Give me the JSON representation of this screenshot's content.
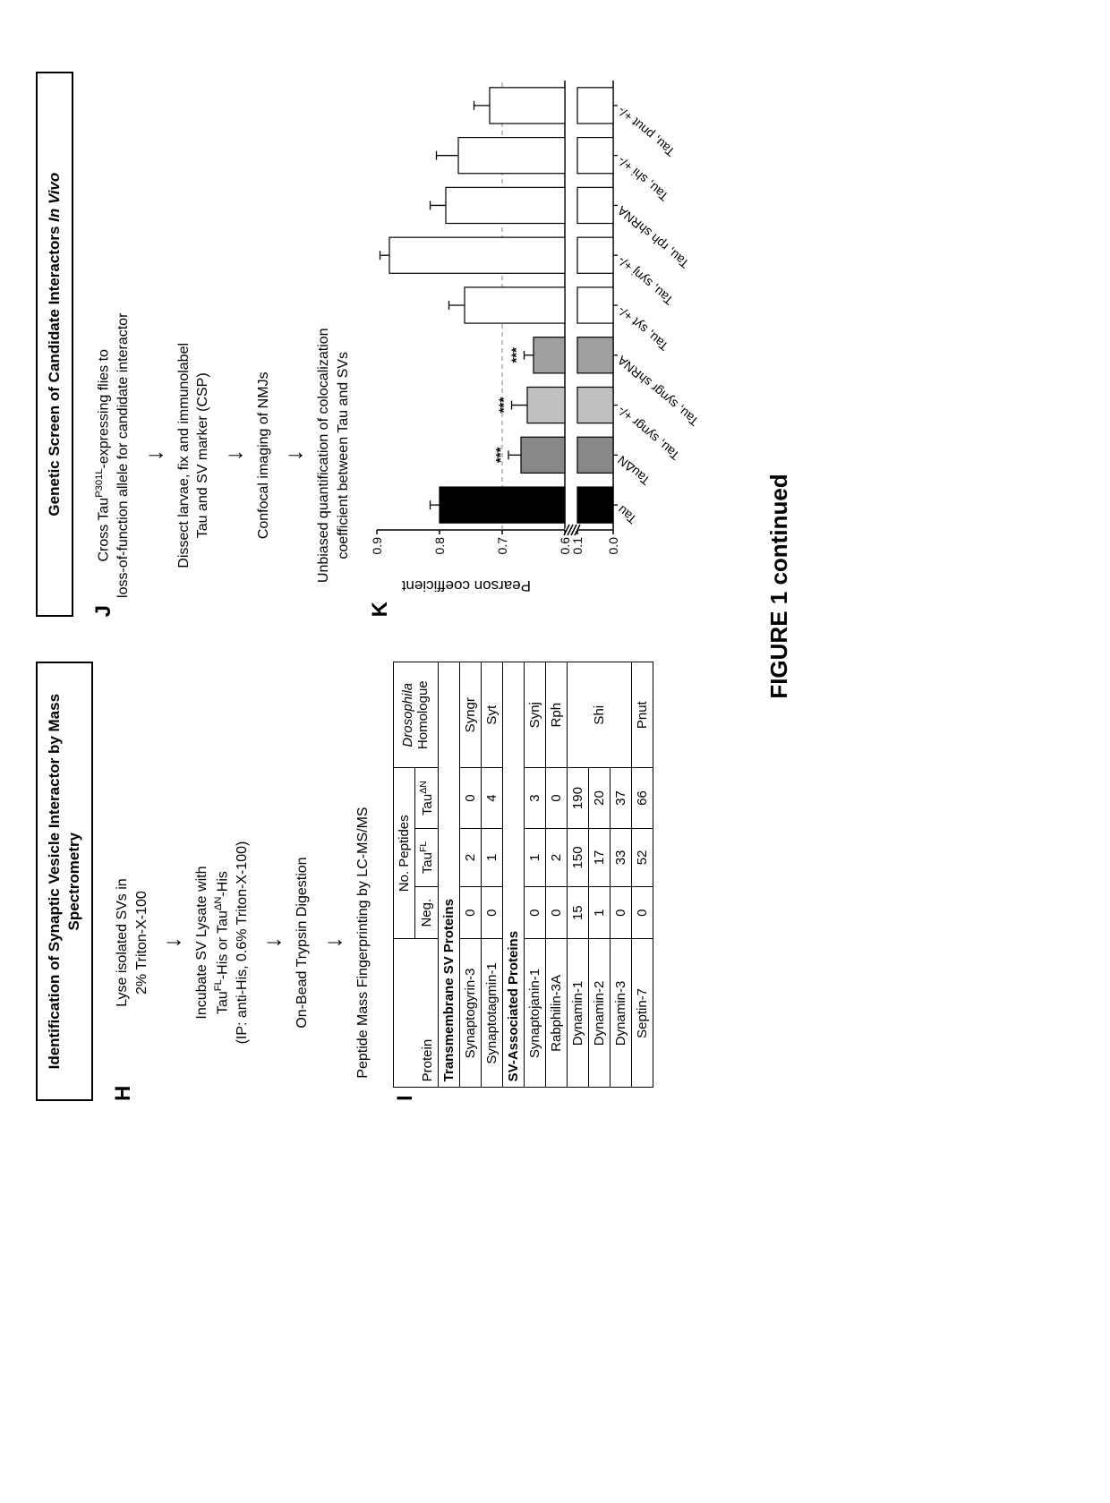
{
  "panelH": {
    "letter": "H",
    "title": "Identification of Synaptic Vesicle Interactor by Mass Spectrometry",
    "steps": [
      "Lyse isolated SVs in\n2% Triton-X-100",
      "Incubate SV Lysate with\nTau<sup>FL</sup>-His or Tau<sup>ΔN</sup>-His\n(IP: anti-His, 0.6% Triton-X-100)",
      "On-Bead Trypsin Digestion",
      "Peptide Mass Fingerprinting by LC-MS/MS"
    ]
  },
  "panelI": {
    "letter": "I",
    "header": {
      "protein": "Protein",
      "peptides": "No. Peptides",
      "neg": "Neg.",
      "tauFL": "Tau<sup>FL</sup>",
      "tauDN": "Tau<sup>ΔN</sup>",
      "homolog": "<i>Drosophila</i><br>Homologue"
    },
    "sections": [
      {
        "title": "Transmembrane SV Proteins",
        "rows": [
          {
            "protein": "Synaptogyrin-3",
            "neg": "0",
            "fl": "2",
            "dn": "0",
            "hom": "Syngr"
          },
          {
            "protein": "Synaptotagmin-1",
            "neg": "0",
            "fl": "1",
            "dn": "4",
            "hom": "Syt"
          }
        ]
      },
      {
        "title": "SV-Associated Proteins",
        "rows": [
          {
            "protein": "Synaptojanin-1",
            "neg": "0",
            "fl": "1",
            "dn": "3",
            "hom": "Synj"
          },
          {
            "protein": "Rabphilin-3A",
            "neg": "0",
            "fl": "2",
            "dn": "0",
            "hom": "Rph"
          },
          {
            "protein": "Dynamin-1",
            "neg": "15",
            "fl": "150",
            "dn": "190",
            "hom": "Shi",
            "hom_rowspan": 3
          },
          {
            "protein": "Dynamin-2",
            "neg": "1",
            "fl": "17",
            "dn": "20"
          },
          {
            "protein": "Dynamin-3",
            "neg": "0",
            "fl": "33",
            "dn": "37"
          },
          {
            "protein": "Septin-7",
            "neg": "0",
            "fl": "52",
            "dn": "66",
            "hom": "Pnut"
          }
        ]
      }
    ]
  },
  "panelJ": {
    "letter": "J",
    "title": "Genetic Screen of Candidate Interactors <i>In Vivo</i>",
    "steps": [
      "Cross Tau<sup>P301L</sup>-expressing flies to\nloss-of-function allele for candidate interactor",
      "Dissect larvae, fix and immunolabel\nTau and SV marker (CSP)",
      "Confocal imaging of NMJs",
      "Unbiased quantification of colocalization\ncoefficient between Tau and SVs"
    ]
  },
  "panelK": {
    "letter": "K",
    "ylabel": "Pearson coefficient",
    "type": "bar",
    "ylim_upper": [
      0.6,
      0.9
    ],
    "ylim_lower": [
      0.0,
      0.1
    ],
    "yticks_upper": [
      0.6,
      0.7,
      0.8,
      0.9
    ],
    "yticks_lower": [
      0.0,
      0.1
    ],
    "grid_dash_y": 0.7,
    "bars": [
      {
        "label": "Tau",
        "value": 0.8,
        "err": 0.015,
        "fill": "#000000",
        "sig": ""
      },
      {
        "label": "Tau<sup>ΔN</sup>",
        "value": 0.67,
        "err": 0.02,
        "fill": "#888888",
        "sig": "***"
      },
      {
        "label": "Tau, syngr +/-",
        "value": 0.66,
        "err": 0.025,
        "fill": "#bfbfbf",
        "sig": "***"
      },
      {
        "label": "Tau, syngr shRNA",
        "value": 0.65,
        "err": 0.015,
        "fill": "#a0a0a0",
        "sig": "***"
      },
      {
        "label": "Tau, syt +/-",
        "value": 0.76,
        "err": 0.025,
        "fill": "#ffffff",
        "sig": ""
      },
      {
        "label": "Tau, synj +/-",
        "value": 0.88,
        "err": 0.015,
        "fill": "#ffffff",
        "sig": ""
      },
      {
        "label": "Tau, rph shRNA",
        "value": 0.79,
        "err": 0.025,
        "fill": "#ffffff",
        "sig": ""
      },
      {
        "label": "Tau, shi +/-",
        "value": 0.77,
        "err": 0.035,
        "fill": "#ffffff",
        "sig": ""
      },
      {
        "label": "Tau, pnut +/-",
        "value": 0.72,
        "err": 0.025,
        "fill": "#ffffff",
        "sig": ""
      }
    ],
    "bar_width": 0.72,
    "axis_color": "#000000",
    "grid_color": "#808080",
    "background_color": "#ffffff",
    "font_size_ticks": 14,
    "font_size_labels": 14
  },
  "caption": "FIGURE 1 continued"
}
